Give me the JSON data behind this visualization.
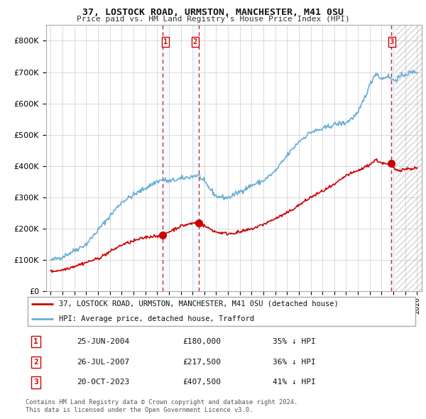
{
  "title1": "37, LOSTOCK ROAD, URMSTON, MANCHESTER, M41 0SU",
  "title2": "Price paid vs. HM Land Registry's House Price Index (HPI)",
  "hpi_color": "#6baed6",
  "price_color": "#cc0000",
  "vline_color": "#cc0000",
  "shade_color": "#ddeeff",
  "hatch_color": "#bbccdd",
  "bg_color": "#ffffff",
  "grid_color": "#cccccc",
  "legend_line1": "37, LOSTOCK ROAD, URMSTON, MANCHESTER, M41 0SU (detached house)",
  "legend_line2": "HPI: Average price, detached house, Trafford",
  "sale1_date": "25-JUN-2004",
  "sale1_price": "£180,000",
  "sale1_hpi": "35% ↓ HPI",
  "sale1_year": 2004.48,
  "sale2_date": "26-JUL-2007",
  "sale2_price": "£217,500",
  "sale2_hpi": "36% ↓ HPI",
  "sale2_year": 2007.56,
  "sale3_date": "20-OCT-2023",
  "sale3_price": "£407,500",
  "sale3_hpi": "41% ↓ HPI",
  "sale3_year": 2023.8,
  "footer1": "Contains HM Land Registry data © Crown copyright and database right 2024.",
  "footer2": "This data is licensed under the Open Government Licence v3.0.",
  "ylim_max": 850000,
  "yticks": [
    0,
    100000,
    200000,
    300000,
    400000,
    500000,
    600000,
    700000,
    800000
  ],
  "xlim_min": 1994.6,
  "xlim_max": 2026.4,
  "xticks": [
    1995,
    1996,
    1997,
    1998,
    1999,
    2000,
    2001,
    2002,
    2003,
    2004,
    2005,
    2006,
    2007,
    2008,
    2009,
    2010,
    2011,
    2012,
    2013,
    2014,
    2015,
    2016,
    2017,
    2018,
    2019,
    2020,
    2021,
    2022,
    2023,
    2024,
    2025,
    2026
  ]
}
